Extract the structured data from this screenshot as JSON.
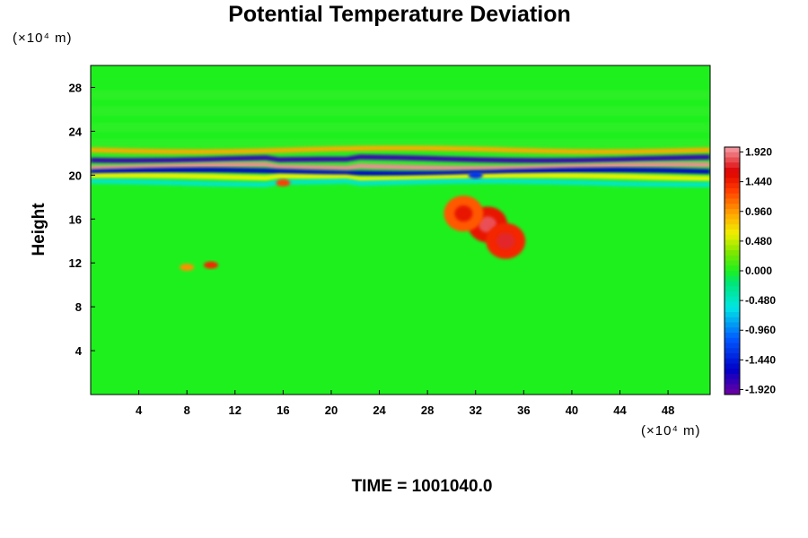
{
  "chart_data": {
    "type": "heatmap",
    "title": "Potential Temperature Deviation",
    "ylabel": "Height",
    "x_unit_label": "(×10⁴ m)",
    "y_unit_label": "(×10⁴ m)",
    "xlim": [
      0,
      51.5
    ],
    "ylim": [
      0,
      30
    ],
    "x_ticks": [
      4,
      8,
      12,
      16,
      20,
      24,
      28,
      32,
      36,
      40,
      44,
      48
    ],
    "y_ticks": [
      4,
      8,
      12,
      16,
      20,
      24,
      28
    ],
    "colorbar": {
      "min": -2.0,
      "max": 2.0,
      "tick_values": [
        1.92,
        1.44,
        0.96,
        0.48,
        0.0,
        -0.48,
        -0.96,
        -1.44,
        -1.92
      ],
      "tick_labels": [
        "1.920",
        "1.440",
        "0.960",
        "0.480",
        "0.000",
        "-0.480",
        "-0.960",
        "-1.440",
        "-1.920"
      ]
    },
    "background_value": 0.0,
    "bands": [
      {
        "y_center": 22.3,
        "value": 0.9
      },
      {
        "y_center": 21.5,
        "value": -1.8
      },
      {
        "y_center": 20.8,
        "value": 1.95
      },
      {
        "y_center": 20.3,
        "value": -1.6
      },
      {
        "y_center": 19.8,
        "value": 0.6
      },
      {
        "y_center": 19.3,
        "value": -0.5
      }
    ],
    "features": [
      {
        "x": 33.0,
        "y": 15.5,
        "value": 1.5
      },
      {
        "x": 31.0,
        "y": 16.5,
        "value": 1.2
      },
      {
        "x": 34.5,
        "y": 14.0,
        "value": 1.4
      },
      {
        "x": 10.0,
        "y": 11.8,
        "value": 1.4
      },
      {
        "x": 8.0,
        "y": 11.6,
        "value": 1.0
      },
      {
        "x": 16.0,
        "y": 19.3,
        "value": 1.3
      },
      {
        "x": 32.0,
        "y": 20.0,
        "value": -1.3
      }
    ]
  },
  "time_label": "TIME = 1001040.0"
}
